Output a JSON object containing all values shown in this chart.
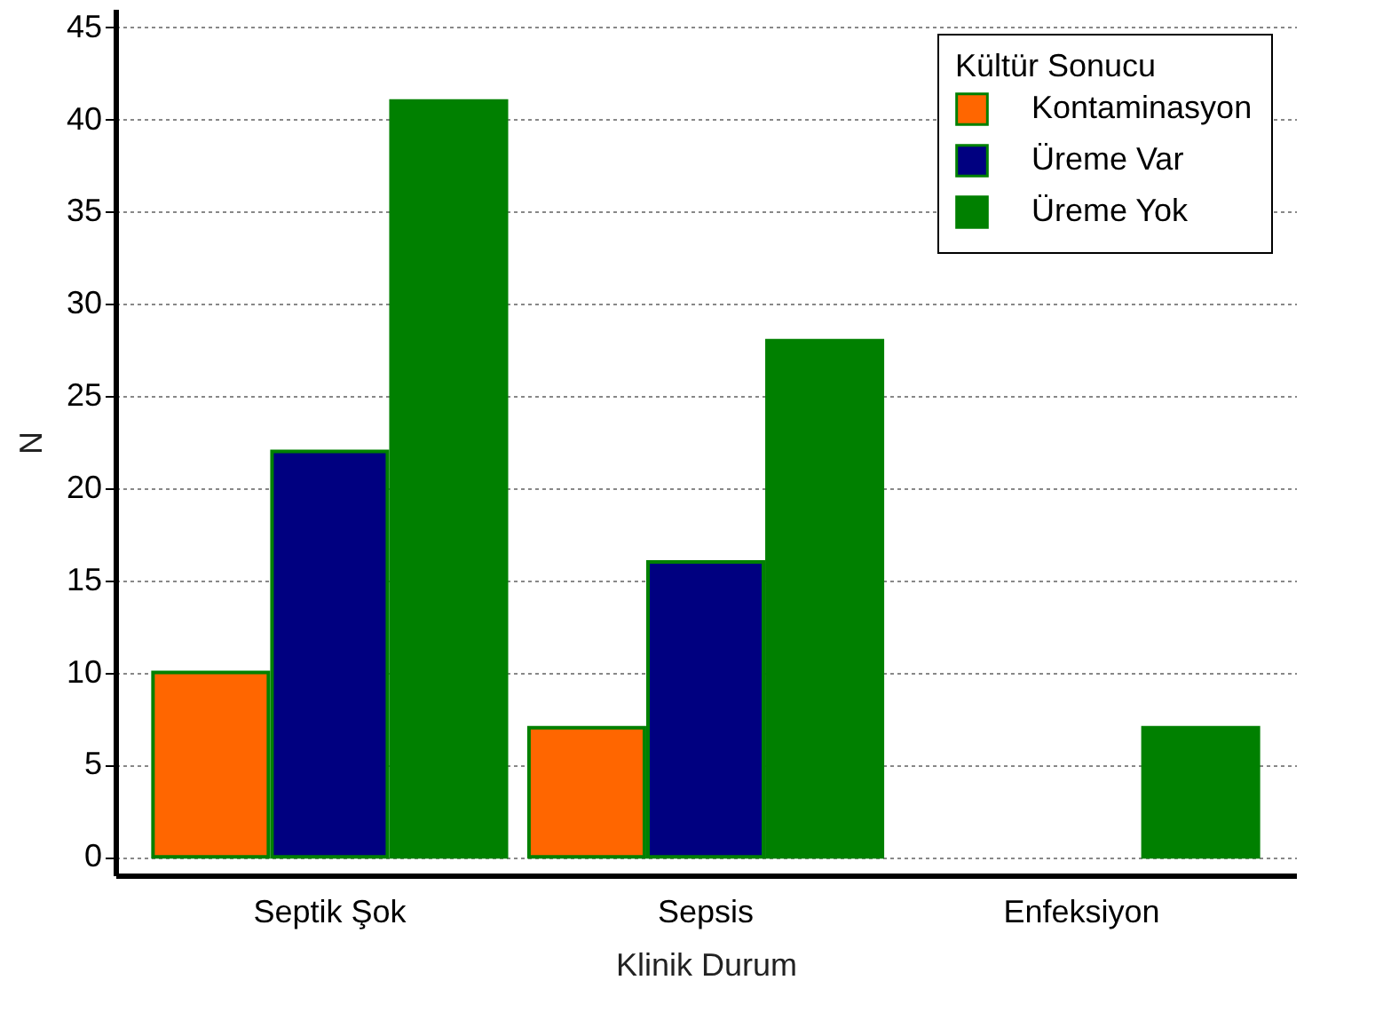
{
  "chart_data": {
    "type": "bar",
    "xlabel": "Klinik Durum",
    "ylabel": "N",
    "legend_title": "Kültür Sonucu",
    "categories": [
      "Septik Şok",
      "Sepsis",
      "Enfeksiyon"
    ],
    "series": [
      {
        "name": "Kontaminasyon",
        "color": "#ff6600",
        "values": [
          10,
          7,
          null
        ]
      },
      {
        "name": "Üreme Var",
        "color": "#000080",
        "values": [
          22,
          16,
          null
        ]
      },
      {
        "name": "Üreme Yok",
        "color": "#008000",
        "values": [
          41,
          28,
          7
        ]
      }
    ],
    "ylim": [
      -1,
      46
    ],
    "yticks": [
      0,
      5,
      10,
      15,
      20,
      25,
      30,
      35,
      40,
      45
    ],
    "grid": "y",
    "legend": "top right"
  }
}
